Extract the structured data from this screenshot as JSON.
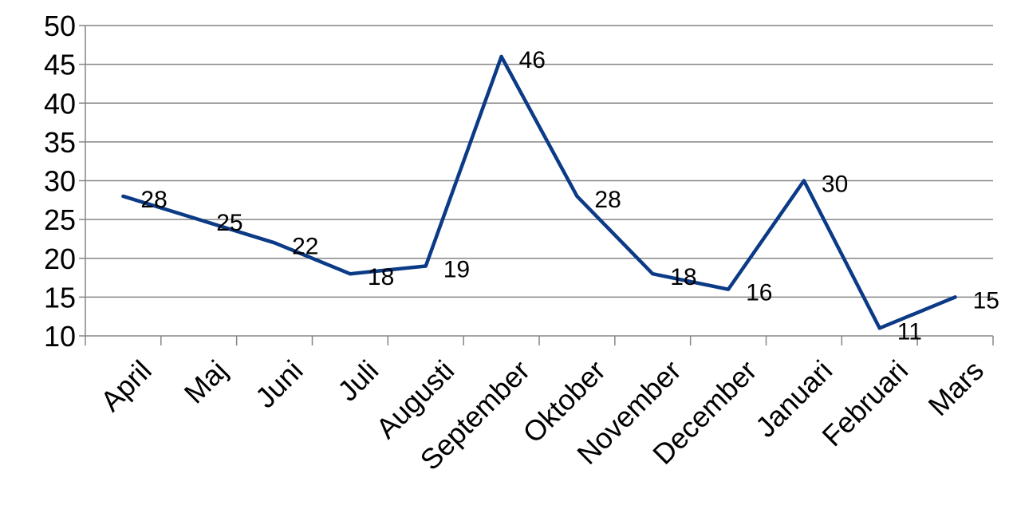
{
  "chart_data": {
    "type": "line",
    "title": "",
    "xlabel": "",
    "ylabel": "",
    "categories": [
      "April",
      "Maj",
      "Juni",
      "Juli",
      "Augusti",
      "September",
      "Oktober",
      "November",
      "December",
      "Januari",
      "Februari",
      "Mars"
    ],
    "series": [
      {
        "values": [
          28,
          25,
          22,
          18,
          19,
          46,
          28,
          18,
          16,
          30,
          11,
          15
        ],
        "color": "#0b3a86"
      }
    ],
    "ylim": [
      10,
      50
    ],
    "yticks": [
      10,
      15,
      20,
      25,
      30,
      35,
      40,
      45,
      50
    ],
    "grid": true,
    "legend": "none",
    "data_labels": true,
    "colors": {
      "line": "#0b3a86",
      "grid": "#868686",
      "axis": "#868686",
      "text": "#000000"
    }
  }
}
